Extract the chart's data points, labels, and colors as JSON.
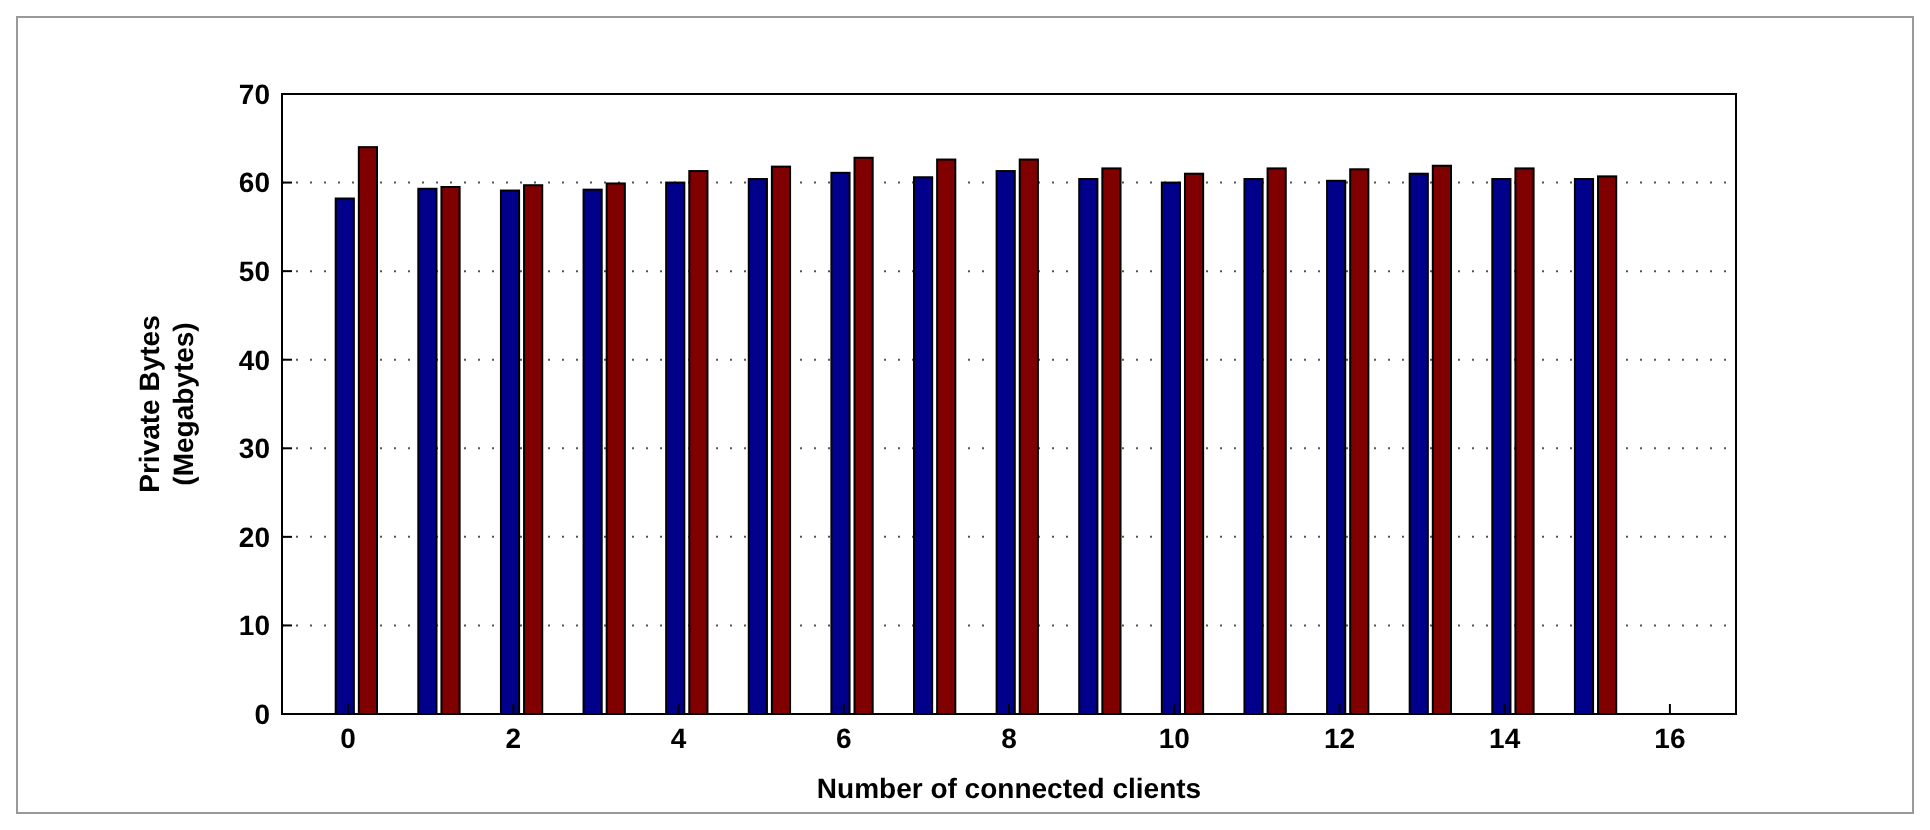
{
  "chart_data": {
    "type": "bar",
    "xlabel": "Number of connected clients",
    "ylabel": "Private Bytes\n(Megabytes)",
    "x": [
      0,
      1,
      2,
      3,
      4,
      5,
      6,
      7,
      8,
      9,
      10,
      11,
      12,
      13,
      14,
      15
    ],
    "series": [
      {
        "color": "#00008b",
        "values": [
          58.2,
          59.3,
          59.1,
          59.2,
          60.0,
          60.4,
          61.1,
          60.6,
          61.3,
          60.4,
          60.0,
          60.4,
          60.2,
          61.0,
          60.4,
          60.4
        ]
      },
      {
        "color": "#800000",
        "values": [
          64.0,
          59.5,
          59.7,
          59.9,
          61.3,
          61.8,
          62.8,
          62.6,
          62.6,
          61.6,
          61.0,
          61.6,
          61.5,
          61.9,
          61.6,
          60.7
        ]
      }
    ],
    "xlim": [
      -0.8,
      16.8
    ],
    "xticks": [
      0,
      2,
      4,
      6,
      8,
      10,
      12,
      14,
      16
    ],
    "ylim": [
      0,
      70
    ],
    "yticks": [
      0,
      10,
      20,
      30,
      40,
      50,
      60,
      70
    ],
    "grid": "y"
  }
}
